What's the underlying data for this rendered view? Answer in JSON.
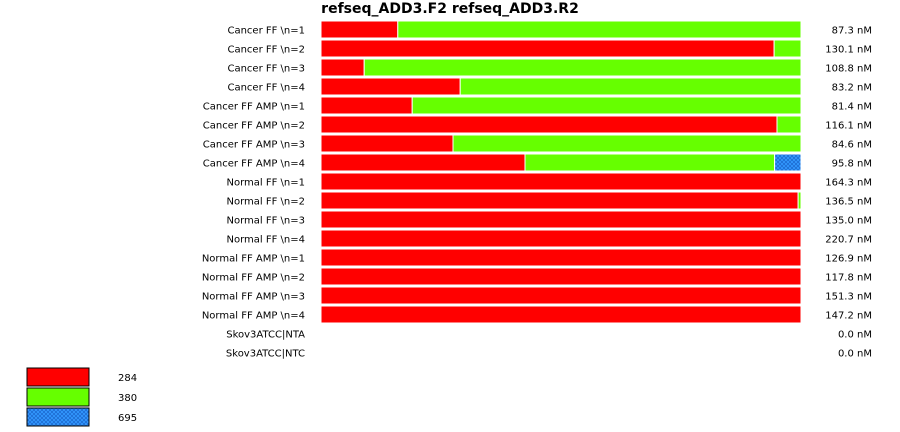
{
  "chart_data": {
    "type": "bar",
    "orientation": "horizontal",
    "stacked": true,
    "title": "refseq_ADD3.F2  refseq_ADD3.R2",
    "categories": [
      "Cancer FF \\n=1",
      "Cancer FF \\n=2",
      "Cancer FF \\n=3",
      "Cancer FF \\n=4",
      "Cancer FF AMP \\n=1",
      "Cancer FF AMP \\n=2",
      "Cancer FF AMP \\n=3",
      "Cancer FF AMP \\n=4",
      "Normal FF \\n=1",
      "Normal FF \\n=2",
      "Normal FF \\n=3",
      "Normal FF \\n=4",
      "Normal FF AMP \\n=1",
      "Normal FF AMP \\n=2",
      "Normal FF AMP \\n=3",
      "Normal FF AMP \\n=4",
      "Skov3ATCC|NTA",
      "Skov3ATCC|NTC"
    ],
    "row_totals": [
      "87.3 nM",
      "130.1 nM",
      "108.8 nM",
      "83.2 nM",
      "81.4 nM",
      "116.1 nM",
      "84.6 nM",
      "95.8 nM",
      "164.3 nM",
      "136.5 nM",
      "135.0 nM",
      "220.7 nM",
      "126.9 nM",
      "117.8 nM",
      "151.3 nM",
      "147.2 nM",
      "0.0 nM",
      "0.0 nM"
    ],
    "xlim": [
      0,
      100
    ],
    "series": [
      {
        "name": "284",
        "color": "#ff0000",
        "values": [
          16,
          94.4,
          9,
          29,
          19,
          95,
          27.5,
          42.5,
          100,
          99.4,
          100,
          100,
          100,
          100,
          100,
          100,
          0,
          0
        ]
      },
      {
        "name": "380",
        "color": "#66ff00",
        "values": [
          84,
          5.6,
          91,
          71,
          81,
          5,
          72.5,
          52,
          0,
          0.6,
          0,
          0,
          0,
          0,
          0,
          0,
          0,
          0
        ]
      },
      {
        "name": "695",
        "color": "#3399ff",
        "hatch": true,
        "values": [
          0,
          0,
          0,
          0,
          0,
          0,
          0,
          5.5,
          0,
          0,
          0,
          0,
          0,
          0,
          0,
          0,
          0,
          0
        ]
      }
    ]
  }
}
